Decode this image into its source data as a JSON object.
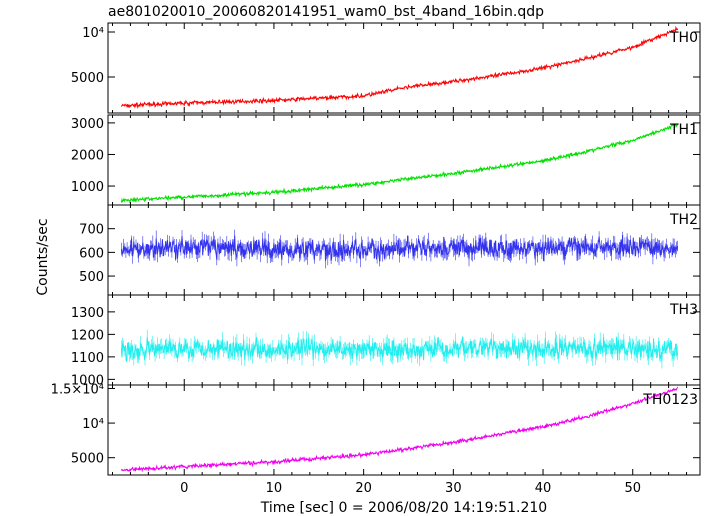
{
  "title": "ae801020010_20060820141951_wam0_bst_4band_16bin.qdp",
  "chart_data": {
    "type": "line",
    "title": "ae801020010_20060820141951_wam0_bst_4band_16bin.qdp",
    "xlabel": "Time [sec] 0 = 2006/08/20 14:19:51.210",
    "ylabel": "Counts/sec",
    "xlim": [
      -8.5,
      57.5
    ],
    "x_ticks": [
      0,
      10,
      20,
      30,
      40,
      50
    ],
    "grid": false,
    "panels": [
      {
        "name": "TH0",
        "color": "#ff0000",
        "ylim": [
          1000,
          11000
        ],
        "y_ticks": [
          5000,
          10000
        ],
        "y_tick_labels": [
          "5000",
          "10⁴"
        ],
        "x": [
          -7,
          0,
          10,
          20,
          25,
          30,
          35,
          40,
          45,
          50,
          55
        ],
        "y": [
          1800,
          2100,
          2400,
          2900,
          3900,
          4500,
          5200,
          6000,
          7100,
          8300,
          10300
        ]
      },
      {
        "name": "TH1",
        "color": "#00e000",
        "ylim": [
          400,
          3250
        ],
        "y_ticks": [
          1000,
          2000,
          3000
        ],
        "y_tick_labels": [
          "1000",
          "2000",
          "3000"
        ],
        "x": [
          -7,
          0,
          10,
          20,
          30,
          40,
          45,
          50,
          55
        ],
        "y": [
          550,
          650,
          800,
          1050,
          1400,
          1800,
          2100,
          2450,
          2950
        ]
      },
      {
        "name": "TH2",
        "color": "#3333ee",
        "ylim": [
          420,
          800
        ],
        "y_ticks": [
          500,
          600,
          700
        ],
        "y_tick_labels": [
          "500",
          "600",
          "700"
        ],
        "x": [
          -7,
          0,
          10,
          20,
          30,
          40,
          50,
          55
        ],
        "y": [
          610,
          620,
          615,
          610,
          620,
          615,
          625,
          615
        ]
      },
      {
        "name": "TH3",
        "color": "#22eeee",
        "ylim": [
          975,
          1375
        ],
        "y_ticks": [
          1000,
          1100,
          1200,
          1300
        ],
        "y_tick_labels": [
          "1000",
          "1100",
          "1200",
          "1300"
        ],
        "x": [
          -7,
          0,
          10,
          20,
          30,
          40,
          50,
          55
        ],
        "y": [
          1130,
          1140,
          1135,
          1130,
          1140,
          1135,
          1140,
          1130
        ]
      },
      {
        "name": "TH0123",
        "color": "#ee00ee",
        "ylim": [
          2500,
          15500
        ],
        "y_ticks": [
          5000,
          10000,
          15000
        ],
        "y_tick_labels": [
          "5000",
          "10⁴",
          "1.5×10⁴"
        ],
        "x": [
          -7,
          0,
          10,
          20,
          30,
          40,
          45,
          50,
          55
        ],
        "y": [
          3200,
          3700,
          4400,
          5400,
          7200,
          9500,
          11000,
          12800,
          15000
        ]
      }
    ]
  }
}
